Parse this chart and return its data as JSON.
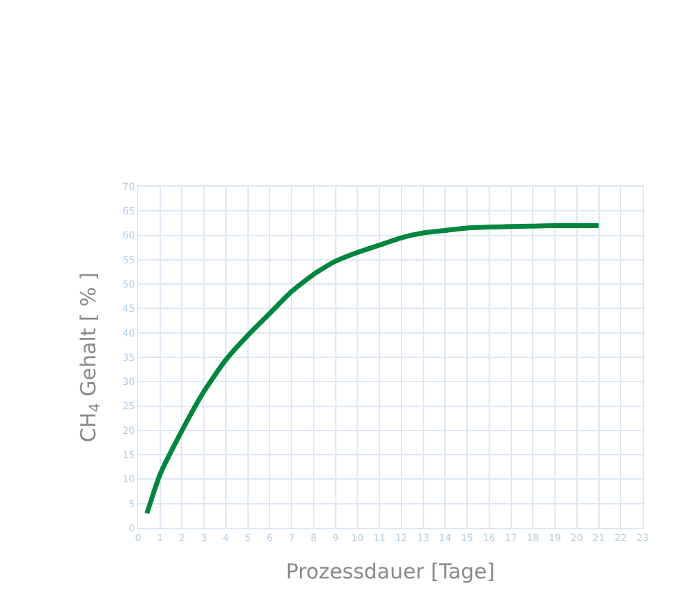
{
  "chart_data": {
    "type": "line",
    "xlabel": "Prozessdauer [Tage]",
    "ylabel": "CH$_{4}$ Gehalt [ % ]",
    "series": [
      {
        "color": "#00853f",
        "x": [
          0.4,
          1,
          2,
          3,
          4,
          5,
          6,
          7,
          8,
          9,
          10,
          11,
          12,
          13,
          14,
          15,
          16,
          17,
          18,
          19,
          20,
          21
        ],
        "values": [
          3,
          11,
          20,
          28,
          34.5,
          39.5,
          44,
          48.5,
          52,
          54.7,
          56.5,
          58,
          59.5,
          60.5,
          61,
          61.5,
          61.7,
          61.8,
          61.9,
          62,
          62,
          62
        ]
      }
    ],
    "xlim": [
      0,
      23
    ],
    "xticks": [
      0,
      1,
      2,
      3,
      4,
      5,
      6,
      7,
      8,
      9,
      10,
      11,
      12,
      13,
      14,
      15,
      16,
      17,
      18,
      19,
      20,
      21,
      22,
      23
    ],
    "ylim": [
      0,
      70
    ],
    "yticks": [
      0,
      5,
      10,
      15,
      20,
      25,
      30,
      35,
      40,
      45,
      50,
      55,
      60,
      65,
      70
    ],
    "grid": true,
    "legend": false,
    "marker": "none",
    "line_style": "solid"
  }
}
